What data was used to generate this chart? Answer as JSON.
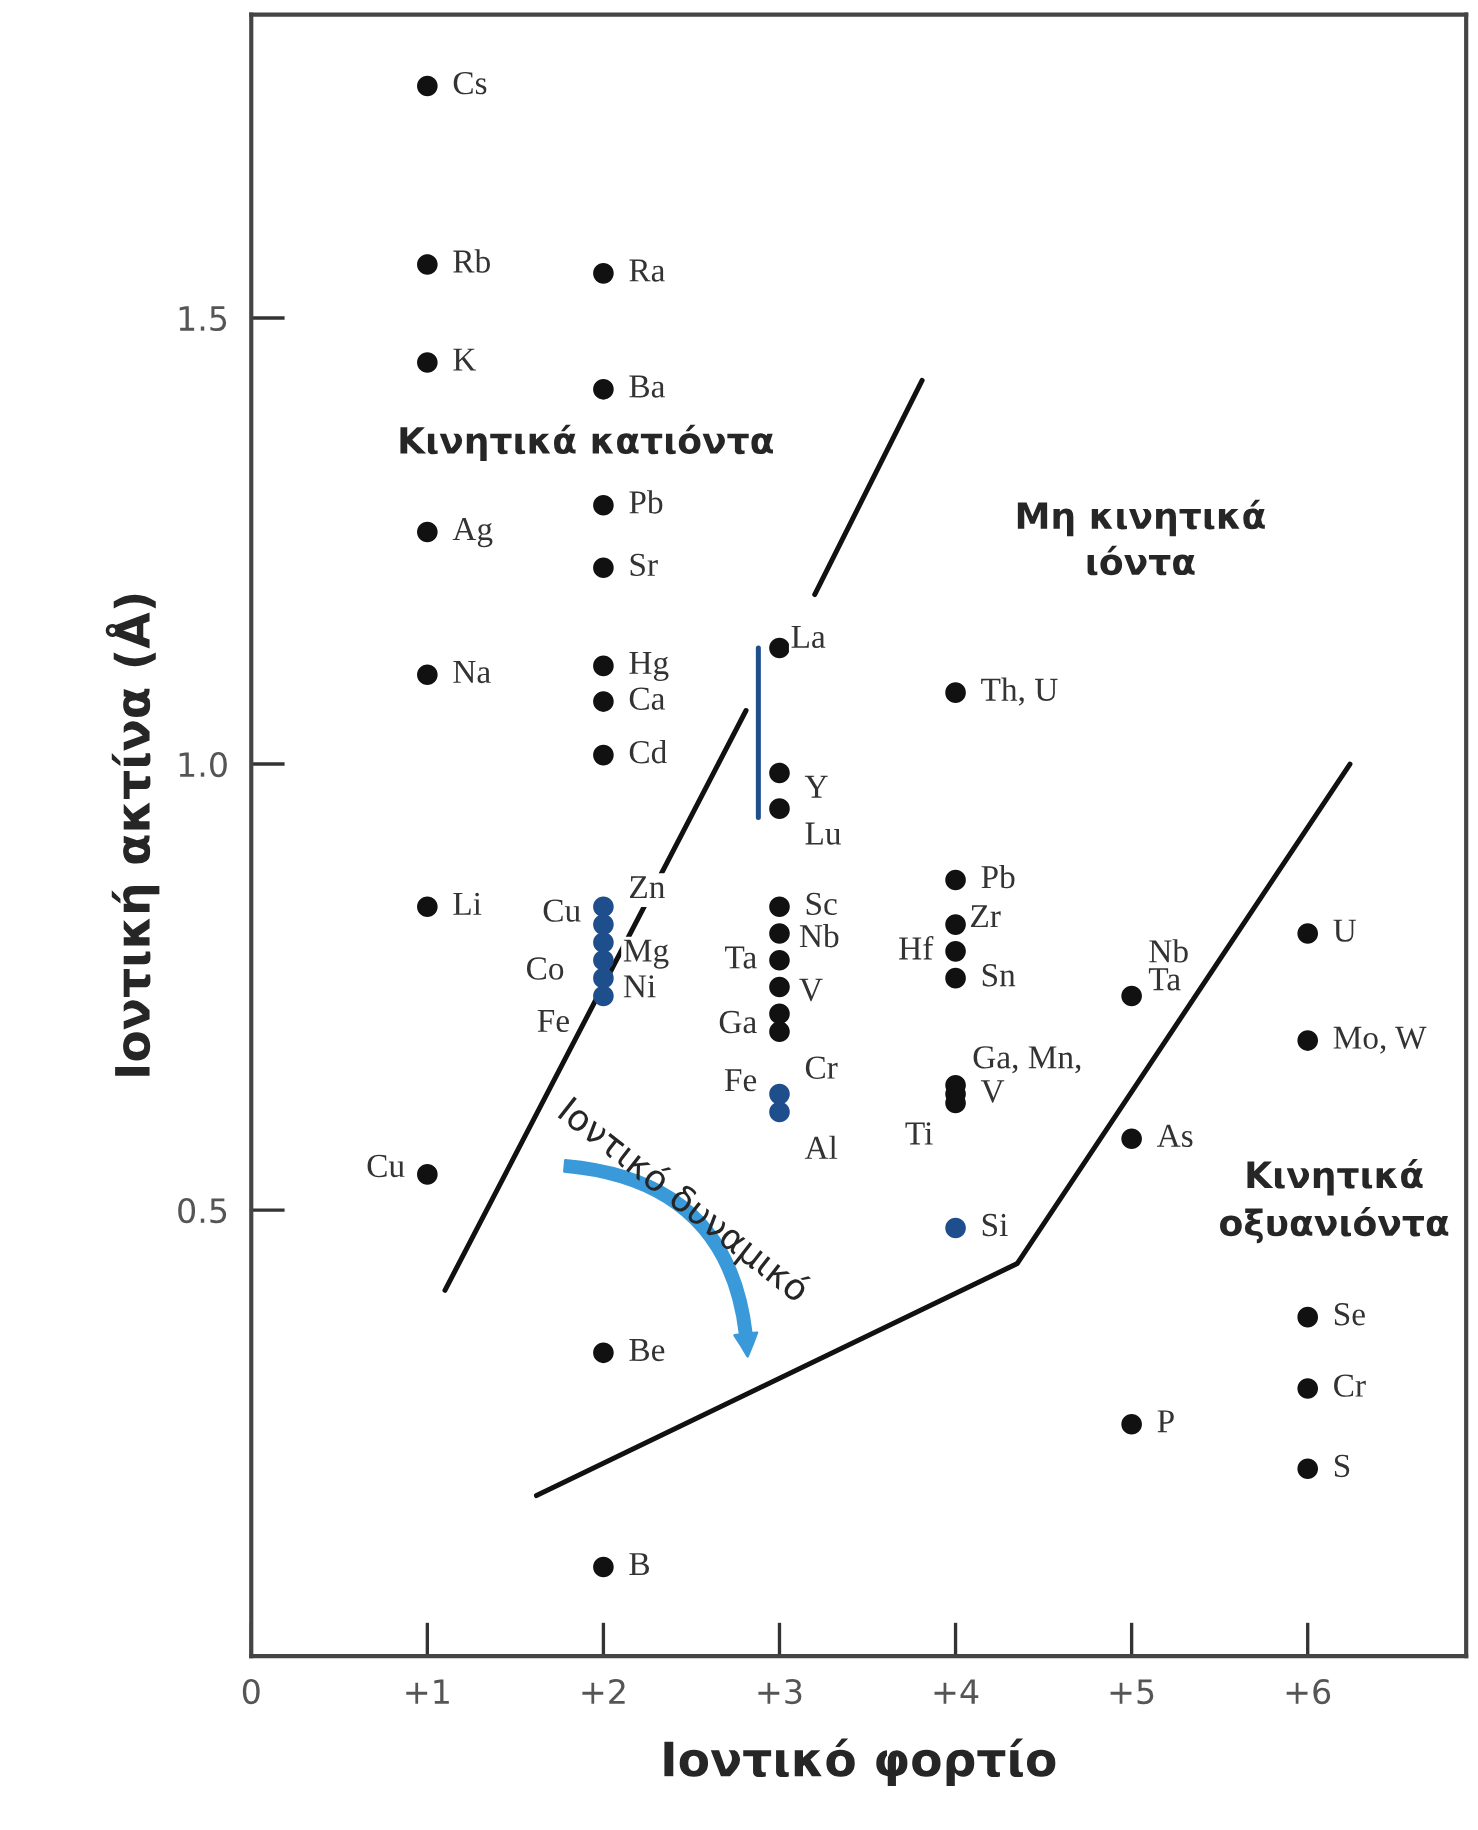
{
  "chart_data": {
    "type": "scatter",
    "xlabel": "Ιοντικό φορτίο",
    "ylabel": "Ιοντική ακτίνα (Å)",
    "xlim": [
      0,
      6.9
    ],
    "ylim": [
      0,
      1.84
    ],
    "xticks": [
      {
        "value": 0,
        "label": "0"
      },
      {
        "value": 1,
        "label": "+1"
      },
      {
        "value": 2,
        "label": "+2"
      },
      {
        "value": 3,
        "label": "+3"
      },
      {
        "value": 4,
        "label": "+4"
      },
      {
        "value": 5,
        "label": "+5"
      },
      {
        "value": 6,
        "label": "+6"
      }
    ],
    "yticks": [
      {
        "value": 0.5,
        "label": "0.5"
      },
      {
        "value": 1.0,
        "label": "1.0"
      },
      {
        "value": 1.5,
        "label": "1.5"
      }
    ],
    "grid": false,
    "annotations": [
      "Κινητικά κατιόντα",
      "Μη κινητικά\nιόντα",
      "Κινητικά\nοξυανιόντα",
      "Ιοντικό δυναμικό"
    ],
    "series": [
      {
        "marker": "circle",
        "x": [
          1,
          1,
          1,
          1,
          1,
          1,
          1,
          2,
          2,
          2,
          2,
          2,
          2,
          2,
          2,
          2,
          2,
          2,
          2,
          2,
          2,
          2,
          3,
          3,
          3,
          3,
          3,
          3,
          3,
          3,
          3,
          3,
          3,
          4,
          4,
          4,
          4,
          4,
          4,
          4,
          4,
          4,
          5,
          5,
          5,
          6,
          6,
          6,
          6,
          6
        ],
        "values": [
          1.76,
          1.56,
          1.45,
          1.26,
          1.1,
          0.84,
          0.54,
          1.55,
          1.42,
          1.29,
          1.22,
          1.11,
          1.07,
          1.01,
          0.84,
          0.82,
          0.8,
          0.78,
          0.76,
          0.74,
          0.34,
          0.1,
          1.13,
          0.99,
          0.95,
          0.84,
          0.81,
          0.78,
          0.75,
          0.72,
          0.7,
          0.63,
          0.61,
          1.08,
          0.87,
          0.82,
          0.79,
          0.76,
          0.64,
          0.63,
          0.62,
          0.48,
          0.74,
          0.58,
          0.26,
          0.81,
          0.69,
          0.38,
          0.3,
          0.21
        ],
        "value_labels": [
          "Cs",
          "Rb",
          "K",
          "Ag",
          "Na",
          "Li",
          "Cu",
          "Ra",
          "Ba",
          "Pb",
          "Sr",
          "Hg",
          "Ca",
          "Cd",
          "Zn",
          "Cu",
          "Mg",
          "Co",
          "Ni",
          "Fe",
          "Be",
          "B",
          "La",
          "Y",
          "Lu",
          "Sc",
          "Nb",
          "Ta",
          "V",
          "Ga",
          "Cr",
          "Fe",
          "Al",
          "Th, U",
          "Pb",
          "Zr",
          "Hf",
          "Sn",
          "Ga, Mn,",
          "V",
          "Ti",
          "Si",
          "Nb\nTa",
          "As",
          "P",
          "U",
          "Mo, W",
          "Se",
          "Cr",
          "S"
        ],
        "colors": [
          "#111111",
          "#111111",
          "#111111",
          "#111111",
          "#111111",
          "#111111",
          "#111111",
          "#111111",
          "#111111",
          "#111111",
          "#111111",
          "#111111",
          "#111111",
          "#111111",
          "#1f4e8c",
          "#1f4e8c",
          "#1f4e8c",
          "#1f4e8c",
          "#1f4e8c",
          "#1f4e8c",
          "#111111",
          "#111111",
          "#111111",
          "#111111",
          "#111111",
          "#111111",
          "#111111",
          "#111111",
          "#111111",
          "#111111",
          "#111111",
          "#1f4e8c",
          "#1f4e8c",
          "#111111",
          "#111111",
          "#111111",
          "#111111",
          "#111111",
          "#111111",
          "#111111",
          "#111111",
          "#1f4e8c",
          "#111111",
          "#111111",
          "#111111",
          "#111111",
          "#111111",
          "#111111",
          "#111111",
          "#111111"
        ]
      },
      {
        "type": "line",
        "color": "#111111",
        "x": [
          1.1,
          2.81
        ],
        "values": [
          0.41,
          1.06
        ]
      },
      {
        "type": "line",
        "color": "#111111",
        "x": [
          3.2,
          3.81
        ],
        "values": [
          1.19,
          1.43
        ]
      },
      {
        "type": "line",
        "color": "#111111",
        "x": [
          1.62,
          4.35,
          6.24
        ],
        "values": [
          0.18,
          0.44,
          1.0
        ]
      },
      {
        "type": "line",
        "color": "#1f4e8c",
        "x": [
          2.88,
          2.88
        ],
        "values": [
          1.13,
          0.94
        ]
      }
    ]
  }
}
